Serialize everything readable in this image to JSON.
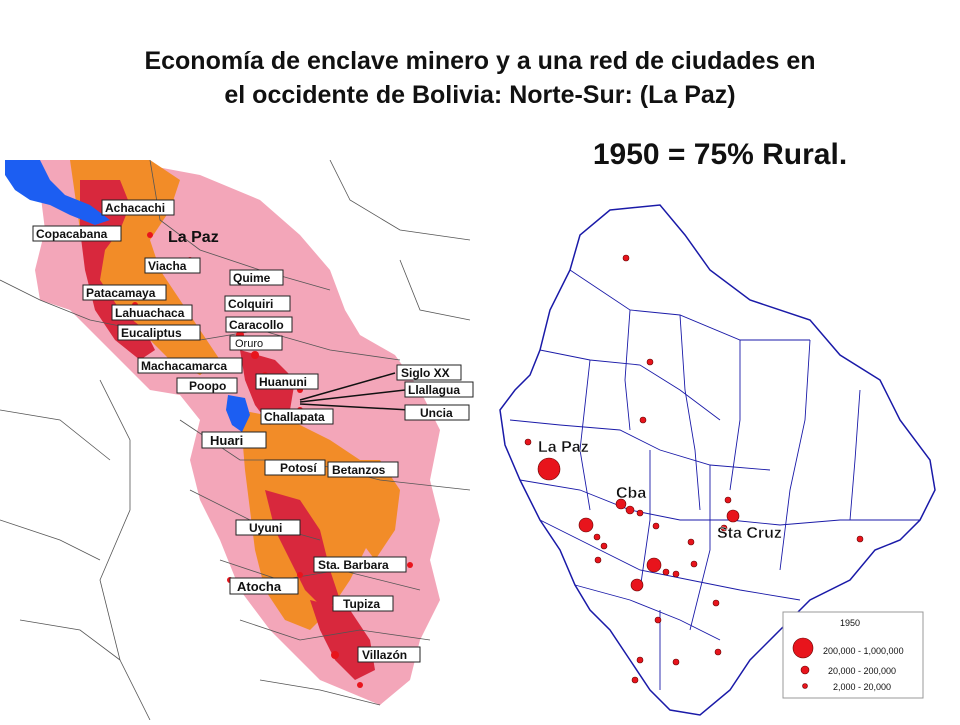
{
  "title_line1": "Economía de enclave minero y a una red de ciudades en",
  "title_line2": "el occidente de Bolivia: Norte-Sur: (La Paz)",
  "subtitle": "1950 = 75% Rural.",
  "left_map": {
    "region_label": "La Paz",
    "cities": [
      "Achacachi",
      "Copacabana",
      "Viacha",
      "Quime",
      "Patacamaya",
      "Colquiri",
      "Lahuachaca",
      "Caracollo",
      "Eucaliptus",
      "Oruro",
      "Machacamarca",
      "Siglo XX",
      "Poopo",
      "Huanuni",
      "Llallagua",
      "Challapata",
      "Uncia",
      "Huari",
      "Potosí",
      "Betanzos",
      "Uyuni",
      "Sta. Barbara",
      "Atocha",
      "Tupiza",
      "Villazón"
    ]
  },
  "right_map": {
    "labels": [
      "La Paz",
      "Cba",
      "Sta Cruz"
    ],
    "legend": {
      "year": "1950",
      "classes": [
        "200,000 - 1,000,000",
        "20,000 -   200,000",
        "2,000 -    20,000"
      ]
    }
  },
  "colors": {
    "dot": "#e8141c",
    "pink": "#f3a6b9",
    "orange": "#f28c28",
    "red": "#d8283d",
    "water": "#1c5ef2"
  }
}
